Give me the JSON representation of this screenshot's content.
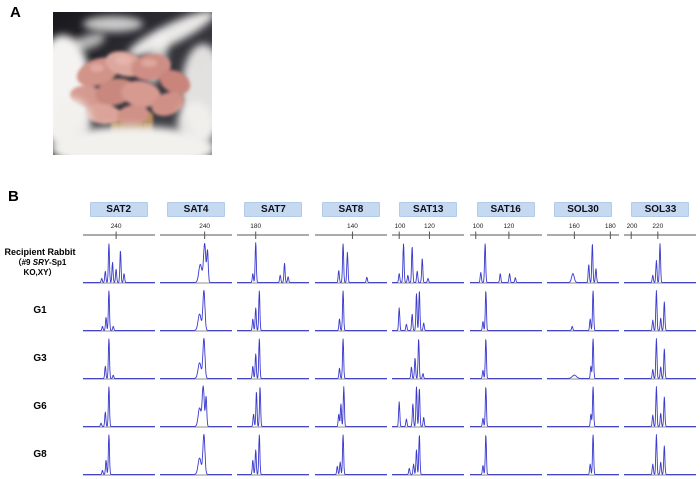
{
  "figure": {
    "panel_a_label": "A",
    "panel_b_label": "B",
    "photo_subject": "litter of newborn hairless pink rabbit pups nestled in white fur nest"
  },
  "colors": {
    "trace_blue": "#3a3acc",
    "axis_gray": "#8f8f8f",
    "tick_text": "#222222",
    "header_bg": "#c5d9f1",
    "header_text": "#10101c",
    "photo_dark_bg": "#26262d",
    "photo_fur_white": "#f4f3f1",
    "pup_pink": "#d29389"
  },
  "chart_data": {
    "type": "line",
    "description": "Microsatellite (STR) electropherogram traces for 8 markers comparing the recipient rabbit with offspring generations G1, G3, G6, G8",
    "legend_position": "none",
    "grid": false,
    "markers": [
      {
        "name": "SAT2",
        "ticks": [
          {
            "label": "240",
            "pos": 0.46
          }
        ]
      },
      {
        "name": "SAT4",
        "ticks": [
          {
            "label": "240",
            "pos": 0.62
          }
        ]
      },
      {
        "name": "SAT7",
        "ticks": [
          {
            "label": "180",
            "pos": 0.26
          }
        ]
      },
      {
        "name": "SAT8",
        "ticks": [
          {
            "label": "140",
            "pos": 0.52
          }
        ]
      },
      {
        "name": "SAT13",
        "ticks": [
          {
            "label": "100",
            "pos": 0.1
          },
          {
            "label": "120",
            "pos": 0.52
          }
        ]
      },
      {
        "name": "SAT16",
        "ticks": [
          {
            "label": "100",
            "pos": 0.08
          },
          {
            "label": "120",
            "pos": 0.54
          }
        ]
      },
      {
        "name": "SOL30",
        "ticks": [
          {
            "label": "160",
            "pos": 0.38
          },
          {
            "label": "180",
            "pos": 0.88
          }
        ]
      },
      {
        "name": "SOL33",
        "ticks": [
          {
            "label": "200",
            "pos": 0.1
          },
          {
            "label": "220",
            "pos": 0.47
          }
        ]
      }
    ],
    "rows": [
      {
        "id": "recipient",
        "label": "Recipient Rabbit",
        "sublabel_prefix": "（#9 ",
        "sublabel_italic": "SRY",
        "sublabel_suffix": "-Sp1 KO,XY）"
      },
      {
        "id": "g1",
        "label": "G1"
      },
      {
        "id": "g3",
        "label": "G3"
      },
      {
        "id": "g6",
        "label": "G6"
      },
      {
        "id": "g8",
        "label": "G8"
      }
    ],
    "peaks_format": "[position_fraction_0to1, relative_height_0to1, optional_gaussian_width]",
    "traces": {
      "recipient": {
        "SAT2": [
          [
            0.26,
            0.1
          ],
          [
            0.31,
            0.28
          ],
          [
            0.36,
            0.97
          ],
          [
            0.41,
            0.5
          ],
          [
            0.46,
            0.33
          ],
          [
            0.52,
            0.8
          ],
          [
            0.57,
            0.22
          ]
        ],
        "SAT4": [
          [
            0.56,
            0.45,
            0.03
          ],
          [
            0.62,
            0.97,
            0.022
          ],
          [
            0.66,
            0.78,
            0.014
          ]
        ],
        "SAT7": [
          [
            0.22,
            0.22
          ],
          [
            0.26,
            1.0
          ],
          [
            0.6,
            0.18
          ],
          [
            0.66,
            0.48
          ],
          [
            0.71,
            0.14
          ]
        ],
        "SAT8": [
          [
            0.33,
            0.3
          ],
          [
            0.39,
            0.97
          ],
          [
            0.45,
            0.75
          ],
          [
            0.72,
            0.13
          ]
        ],
        "SAT13": [
          [
            0.1,
            0.22
          ],
          [
            0.16,
            0.97
          ],
          [
            0.22,
            0.18
          ],
          [
            0.28,
            0.9
          ],
          [
            0.35,
            0.28
          ],
          [
            0.42,
            0.6
          ],
          [
            0.5,
            0.1
          ]
        ],
        "SAT16": [
          [
            0.15,
            0.25
          ],
          [
            0.21,
            0.97
          ],
          [
            0.42,
            0.22
          ],
          [
            0.55,
            0.22
          ],
          [
            0.63,
            0.12
          ]
        ],
        "SOL30": [
          [
            0.36,
            0.22,
            0.025
          ],
          [
            0.58,
            0.45
          ],
          [
            0.63,
            0.97
          ],
          [
            0.68,
            0.35
          ]
        ],
        "SOL33": [
          [
            0.4,
            0.18
          ],
          [
            0.45,
            0.55
          ],
          [
            0.5,
            0.97
          ]
        ]
      },
      "g1": {
        "SAT2": [
          [
            0.27,
            0.1
          ],
          [
            0.32,
            0.32
          ],
          [
            0.36,
            0.97
          ],
          [
            0.42,
            0.1
          ]
        ],
        "SAT4": [
          [
            0.55,
            0.4,
            0.03
          ],
          [
            0.61,
            0.97,
            0.02
          ]
        ],
        "SAT7": [
          [
            0.22,
            0.28
          ],
          [
            0.26,
            0.55
          ],
          [
            0.31,
            0.97
          ]
        ],
        "SAT8": [
          [
            0.34,
            0.28
          ],
          [
            0.39,
            0.97
          ]
        ],
        "SAT13": [
          [
            0.1,
            0.55
          ],
          [
            0.2,
            0.15
          ],
          [
            0.28,
            0.4
          ],
          [
            0.34,
            0.9
          ],
          [
            0.38,
            0.97
          ],
          [
            0.44,
            0.18
          ]
        ],
        "SAT16": [
          [
            0.18,
            0.22
          ],
          [
            0.22,
            0.97
          ]
        ],
        "SOL30": [
          [
            0.35,
            0.1
          ],
          [
            0.6,
            0.28
          ],
          [
            0.64,
            0.97
          ]
        ],
        "SOL33": [
          [
            0.4,
            0.25
          ],
          [
            0.45,
            0.97
          ],
          [
            0.51,
            0.3
          ],
          [
            0.56,
            0.7
          ]
        ]
      },
      "g3": {
        "SAT2": [
          [
            0.31,
            0.3
          ],
          [
            0.36,
            0.97
          ],
          [
            0.42,
            0.08
          ]
        ],
        "SAT4": [
          [
            0.55,
            0.38,
            0.03
          ],
          [
            0.61,
            0.97,
            0.02
          ]
        ],
        "SAT7": [
          [
            0.22,
            0.3
          ],
          [
            0.26,
            0.6
          ],
          [
            0.31,
            0.97
          ]
        ],
        "SAT8": [
          [
            0.34,
            0.25
          ],
          [
            0.39,
            0.97
          ]
        ],
        "SAT13": [
          [
            0.27,
            0.28
          ],
          [
            0.32,
            0.5
          ],
          [
            0.37,
            0.97
          ],
          [
            0.43,
            0.12
          ]
        ],
        "SAT16": [
          [
            0.18,
            0.2
          ],
          [
            0.22,
            0.97
          ]
        ],
        "SOL30": [
          [
            0.38,
            0.08,
            0.04
          ],
          [
            0.61,
            0.3
          ],
          [
            0.64,
            0.97
          ]
        ],
        "SOL33": [
          [
            0.4,
            0.22
          ],
          [
            0.45,
            0.97
          ],
          [
            0.51,
            0.28
          ],
          [
            0.56,
            0.72
          ]
        ]
      },
      "g6": {
        "SAT2": [
          [
            0.25,
            0.08
          ],
          [
            0.31,
            0.35
          ],
          [
            0.36,
            0.97
          ]
        ],
        "SAT4": [
          [
            0.55,
            0.45,
            0.028
          ],
          [
            0.6,
            0.97,
            0.02
          ],
          [
            0.64,
            0.72,
            0.013
          ]
        ],
        "SAT7": [
          [
            0.23,
            0.3
          ],
          [
            0.27,
            0.85
          ],
          [
            0.32,
            0.97
          ]
        ],
        "SAT8": [
          [
            0.33,
            0.3
          ],
          [
            0.36,
            0.55
          ],
          [
            0.4,
            0.97
          ]
        ],
        "SAT13": [
          [
            0.1,
            0.6
          ],
          [
            0.2,
            0.18
          ],
          [
            0.29,
            0.55
          ],
          [
            0.34,
            0.97
          ],
          [
            0.38,
            0.93
          ],
          [
            0.44,
            0.22
          ]
        ],
        "SAT16": [
          [
            0.18,
            0.2
          ],
          [
            0.22,
            0.97
          ]
        ],
        "SOL30": [
          [
            0.61,
            0.3
          ],
          [
            0.64,
            0.97
          ]
        ],
        "SOL33": [
          [
            0.4,
            0.28
          ],
          [
            0.45,
            0.97
          ],
          [
            0.51,
            0.32
          ],
          [
            0.56,
            0.72
          ]
        ]
      },
      "g8": {
        "SAT2": [
          [
            0.27,
            0.1
          ],
          [
            0.32,
            0.35
          ],
          [
            0.36,
            0.97
          ]
        ],
        "SAT4": [
          [
            0.55,
            0.4,
            0.03
          ],
          [
            0.61,
            0.97,
            0.02
          ]
        ],
        "SAT7": [
          [
            0.22,
            0.35
          ],
          [
            0.26,
            0.6
          ],
          [
            0.31,
            0.97
          ]
        ],
        "SAT8": [
          [
            0.31,
            0.2
          ],
          [
            0.35,
            0.3
          ],
          [
            0.39,
            0.97
          ]
        ],
        "SAT13": [
          [
            0.24,
            0.15
          ],
          [
            0.3,
            0.25
          ],
          [
            0.34,
            0.6
          ],
          [
            0.38,
            0.97
          ]
        ],
        "SAT16": [
          [
            0.18,
            0.22
          ],
          [
            0.22,
            0.97
          ]
        ],
        "SOL30": [
          [
            0.6,
            0.25
          ],
          [
            0.64,
            0.97
          ]
        ],
        "SOL33": [
          [
            0.4,
            0.25
          ],
          [
            0.45,
            0.97
          ],
          [
            0.51,
            0.3
          ],
          [
            0.56,
            0.7
          ]
        ]
      }
    }
  }
}
